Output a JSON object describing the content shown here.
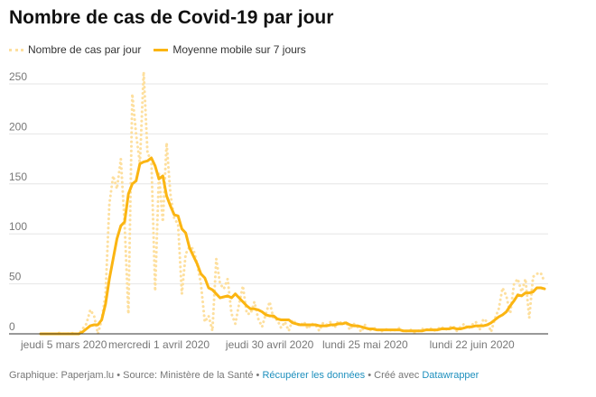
{
  "title": "Nombre de cas de Covid-19 par jour",
  "footer": {
    "graphic": "Graphique: Paperjam.lu",
    "sep": " • ",
    "source": "Source: Ministère de la Santé",
    "download": "Récupérer les données",
    "made_with": "Créé avec",
    "tool": "Datawrapper"
  },
  "colors": {
    "daily": "#fddf9e",
    "average": "#fbb512",
    "grid": "#e6e6e6",
    "axis": "#333333",
    "link": "#1d8fbd"
  },
  "chart_data": {
    "type": "line",
    "title": "Nombre de cas de Covid-19 par jour",
    "ylim": [
      0,
      260
    ],
    "yticks": [
      0,
      50,
      100,
      150,
      200,
      250
    ],
    "grid": true,
    "legend": "top-left",
    "xticks": [
      {
        "date": "2020-03-05",
        "label": "jeudi 5 mars 2020"
      },
      {
        "date": "2020-04-01",
        "label": "mercredi 1 avril 2020"
      },
      {
        "date": "2020-04-30",
        "label": "jeudi 30 avril 2020"
      },
      {
        "date": "2020-05-25",
        "label": "lundi 25 mai 2020"
      },
      {
        "date": "2020-06-22",
        "label": "lundi 22 juin 2020"
      }
    ],
    "x_range": [
      "2020-03-01",
      "2020-07-11"
    ],
    "series": [
      {
        "name": "Nombre de cas par jour",
        "style": "dotted",
        "values": [
          0,
          0,
          0,
          0,
          0,
          1,
          0,
          0,
          1,
          0,
          0,
          5,
          10,
          24,
          18,
          0,
          14,
          40,
          130,
          158,
          145,
          175,
          110,
          20,
          240,
          200,
          170,
          262,
          180,
          175,
          43,
          160,
          112,
          191,
          140,
          115,
          110,
          40,
          80,
          87,
          85,
          70,
          50,
          12,
          18,
          3,
          75,
          50,
          45,
          55,
          20,
          10,
          30,
          48,
          20,
          20,
          32,
          15,
          7,
          20,
          32,
          15,
          14,
          6,
          12,
          3,
          14,
          10,
          8,
          12,
          5,
          10,
          9,
          3,
          11,
          9,
          12,
          6,
          13,
          10,
          12,
          4,
          10,
          7,
          2,
          9,
          3,
          5,
          6,
          2,
          4,
          5,
          3,
          4,
          6,
          2,
          3,
          4,
          1,
          3,
          5,
          4,
          6,
          3,
          5,
          7,
          4,
          6,
          8,
          3,
          7,
          10,
          5,
          9,
          12,
          4,
          15,
          12,
          2,
          15,
          25,
          46,
          38,
          20,
          50,
          55,
          42,
          55,
          16,
          57,
          60,
          61,
          52
        ]
      },
      {
        "name": "Moyenne mobile sur 7 jours",
        "style": "solid",
        "values": [
          0,
          0,
          0,
          0,
          0,
          0,
          0,
          0,
          0,
          0,
          0,
          2,
          5,
          8,
          9,
          9,
          14,
          30,
          55,
          75,
          95,
          108,
          112,
          140,
          150,
          153,
          170,
          172,
          173,
          176,
          168,
          155,
          158,
          138,
          128,
          119,
          118,
          105,
          101,
          86,
          78,
          70,
          60,
          56,
          46,
          44,
          40,
          36,
          37,
          38,
          36,
          40,
          36,
          32,
          28,
          25,
          25,
          24,
          22,
          19,
          18,
          18,
          15,
          14,
          14,
          14,
          11,
          10,
          9,
          9,
          9,
          9,
          9,
          8,
          8,
          8,
          9,
          9,
          10,
          10,
          11,
          9,
          8,
          8,
          7,
          6,
          5,
          5,
          4,
          4,
          4,
          4,
          4,
          4,
          4,
          3,
          3,
          3,
          3,
          3,
          3,
          4,
          4,
          4,
          4,
          5,
          5,
          5,
          6,
          5,
          5,
          6,
          7,
          7,
          8,
          8,
          8,
          9,
          11,
          14,
          17,
          19,
          22,
          28,
          33,
          39,
          38,
          41,
          41,
          42,
          46,
          46,
          45
        ]
      }
    ]
  }
}
